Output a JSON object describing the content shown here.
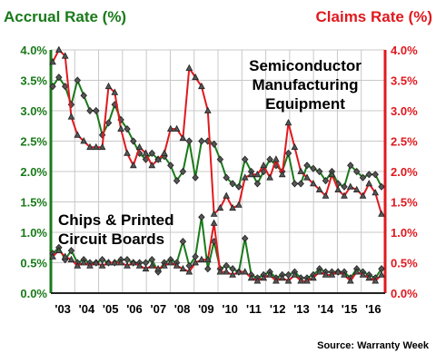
{
  "chart_data": {
    "type": "line",
    "left_axis_label": "Accrual Rate (%)",
    "right_axis_label": "Claims Rate (%)",
    "left_axis_color": "#1a7a1a",
    "right_axis_color": "#e0191e",
    "ylim": [
      0,
      4
    ],
    "y_ticks": [
      "0.0%",
      "0.5%",
      "1.0%",
      "1.5%",
      "2.0%",
      "2.5%",
      "3.0%",
      "3.5%",
      "4.0%"
    ],
    "x_ticks": [
      "'03",
      "'04",
      "'05",
      "'06",
      "'07",
      "'08",
      "'09",
      "'10",
      "'11",
      "'12",
      "'13",
      "'14",
      "'15",
      "'16"
    ],
    "annotations": {
      "semiconductor": [
        "Semiconductor",
        "Manufacturing",
        "Equipment"
      ],
      "chips": [
        "Chips & Printed",
        "Circuit Boards"
      ]
    },
    "source": "Source: Warranty Week",
    "series": [
      {
        "group": "Semiconductor Manufacturing Equipment",
        "measure": "accrual",
        "color": "#1a7a1a",
        "values": [
          3.4,
          3.55,
          3.4,
          3.1,
          3.5,
          3.25,
          3.0,
          3.0,
          2.6,
          2.8,
          3.1,
          2.85,
          2.7,
          2.5,
          2.3,
          2.2,
          2.3,
          2.2,
          2.25,
          2.1,
          1.85,
          2.0,
          2.5,
          1.9,
          2.5,
          2.5,
          2.45,
          2.2,
          1.9,
          1.8,
          1.75,
          2.2,
          2.0,
          1.8,
          2.0,
          2.2,
          2.1,
          2.0,
          2.3,
          1.8,
          1.8,
          2.1,
          2.05,
          2.0,
          1.85,
          2.0,
          1.8,
          1.75,
          2.1,
          2.0,
          1.9,
          1.95,
          1.95,
          1.75
        ]
      },
      {
        "group": "Semiconductor Manufacturing Equipment",
        "measure": "claims",
        "color": "#e0191e",
        "values": [
          3.8,
          4.0,
          3.9,
          2.9,
          2.6,
          2.5,
          2.4,
          2.4,
          2.4,
          3.4,
          3.3,
          2.7,
          2.3,
          2.1,
          2.4,
          2.3,
          2.1,
          2.2,
          2.3,
          2.7,
          2.7,
          2.55,
          3.7,
          3.55,
          3.4,
          3.0,
          1.3,
          1.4,
          1.6,
          1.4,
          1.45,
          1.9,
          1.95,
          1.95,
          2.1,
          1.9,
          2.2,
          1.95,
          2.8,
          2.4,
          2.0,
          1.9,
          1.8,
          1.7,
          1.6,
          1.95,
          1.7,
          1.6,
          1.75,
          1.7,
          1.6,
          1.8,
          1.65,
          1.3
        ]
      },
      {
        "group": "Chips & Printed Circuit Boards",
        "measure": "accrual",
        "color": "#1a7a1a",
        "values": [
          0.65,
          0.75,
          0.55,
          0.7,
          0.5,
          0.55,
          0.5,
          0.5,
          0.55,
          0.5,
          0.5,
          0.55,
          0.55,
          0.5,
          0.5,
          0.5,
          0.55,
          0.35,
          0.5,
          0.55,
          0.5,
          0.85,
          0.45,
          0.6,
          1.25,
          0.4,
          0.85,
          0.4,
          0.45,
          0.4,
          0.35,
          0.9,
          0.3,
          0.25,
          0.3,
          0.35,
          0.25,
          0.3,
          0.3,
          0.35,
          0.25,
          0.25,
          0.3,
          0.4,
          0.35,
          0.35,
          0.35,
          0.35,
          0.25,
          0.4,
          0.35,
          0.3,
          0.25,
          0.4
        ]
      },
      {
        "group": "Chips & Printed Circuit Boards",
        "measure": "claims",
        "color": "#e0191e",
        "values": [
          0.6,
          0.7,
          0.6,
          0.55,
          0.45,
          0.5,
          0.45,
          0.5,
          0.45,
          0.5,
          0.5,
          0.5,
          0.45,
          0.5,
          0.45,
          0.4,
          0.45,
          0.4,
          0.45,
          0.5,
          0.45,
          0.4,
          0.35,
          0.5,
          0.55,
          0.55,
          1.15,
          0.35,
          0.35,
          0.3,
          0.35,
          0.35,
          0.25,
          0.2,
          0.25,
          0.3,
          0.2,
          0.25,
          0.2,
          0.3,
          0.2,
          0.2,
          0.25,
          0.35,
          0.3,
          0.3,
          0.35,
          0.3,
          0.2,
          0.35,
          0.3,
          0.25,
          0.2,
          0.3
        ]
      }
    ]
  }
}
